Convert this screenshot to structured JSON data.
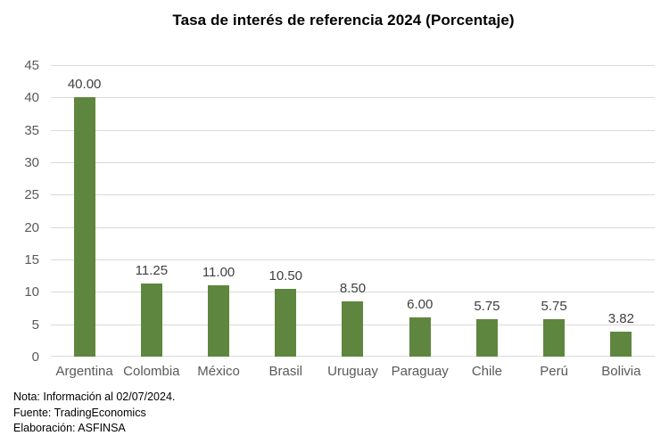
{
  "title": "Tasa de interés de referencia 2024 (Porcentaje)",
  "notes": [
    "Nota: Información al 02/07/2024.",
    "Fuente: TradingEconomics",
    "Elaboración: ASFINSA"
  ],
  "chart_data": {
    "type": "bar",
    "title": "Tasa de interés de referencia 2024 (Porcentaje)",
    "categories": [
      "Argentina",
      "Colombia",
      "México",
      "Brasil",
      "Uruguay",
      "Paraguay",
      "Chile",
      "Perú",
      "Bolivia"
    ],
    "values": [
      40.0,
      11.25,
      11.0,
      10.5,
      8.5,
      6.0,
      5.75,
      5.75,
      3.82
    ],
    "value_labels": [
      "40.00",
      "11.25",
      "11.00",
      "10.50",
      "8.50",
      "6.00",
      "5.75",
      "5.75",
      "3.82"
    ],
    "xlabel": "",
    "ylabel": "",
    "ylim": [
      0,
      45
    ],
    "ytick_step": 5,
    "grid": true,
    "legend": "none",
    "colors": {
      "bar": "#5F863E",
      "gridline": "#D9D9D9",
      "axis_tick_label": "#595959",
      "category_label": "#595959",
      "data_label": "#404040",
      "title": "#000000",
      "notes": "#000000",
      "background": "#FFFFFF"
    }
  }
}
